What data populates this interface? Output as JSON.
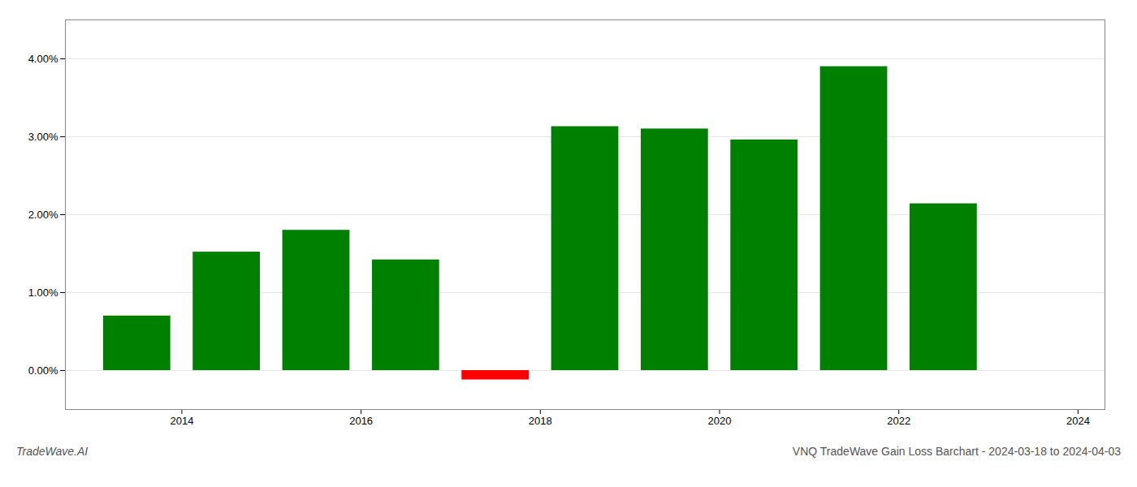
{
  "chart_data": {
    "type": "bar",
    "title": "VNQ TradeWave Gain Loss Barchart - 2024-03-18 to 2024-04-03",
    "annotations": [
      "TradeWave.AI"
    ],
    "x": [
      2014,
      2015,
      2016,
      2017,
      2018,
      2019,
      2020,
      2021,
      2022,
      2023
    ],
    "values": [
      0.007,
      0.0152,
      0.018,
      0.0142,
      -0.0012,
      0.0313,
      0.031,
      0.0296,
      0.039,
      0.0214
    ],
    "colors": [
      "#008000",
      "#008000",
      "#008000",
      "#008000",
      "#ff0000",
      "#008000",
      "#008000",
      "#008000",
      "#008000",
      "#008000"
    ],
    "xlim": [
      2013.2,
      2024.8
    ],
    "xticks": [
      {
        "value": 2014.5,
        "label": "2014"
      },
      {
        "value": 2016.5,
        "label": "2016"
      },
      {
        "value": 2018.5,
        "label": "2018"
      },
      {
        "value": 2020.5,
        "label": "2020"
      },
      {
        "value": 2022.5,
        "label": "2022"
      },
      {
        "value": 2024.5,
        "label": "2024"
      }
    ],
    "ylim": [
      -0.005,
      0.045
    ],
    "yticks": [
      {
        "value": 0.0,
        "label": "0.00%"
      },
      {
        "value": 0.01,
        "label": "1.00%"
      },
      {
        "value": 0.02,
        "label": "2.00%"
      },
      {
        "value": 0.03,
        "label": "3.00%"
      },
      {
        "value": 0.04,
        "label": "4.00%"
      }
    ],
    "grid": true
  }
}
